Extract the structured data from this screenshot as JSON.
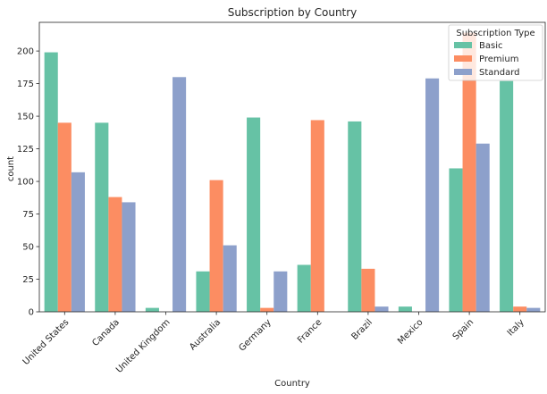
{
  "chart_data": {
    "type": "bar",
    "title": "Subscription by Country",
    "xlabel": "Country",
    "ylabel": "count",
    "ylim": [
      0,
      222
    ],
    "yticks": [
      0,
      25,
      50,
      75,
      100,
      125,
      150,
      175,
      200
    ],
    "grid": false,
    "legend": {
      "title": "Subscription Type",
      "position": "top-right"
    },
    "categories": [
      "United States",
      "Canada",
      "United Kingdom",
      "Australia",
      "Germany",
      "France",
      "Brazil",
      "Mexico",
      "Spain",
      "Italy"
    ],
    "series": [
      {
        "name": "Basic",
        "color": "#66c2a5",
        "values": [
          199,
          145,
          3,
          31,
          149,
          36,
          146,
          4,
          110,
          177
        ]
      },
      {
        "name": "Premium",
        "color": "#fc8d62",
        "values": [
          145,
          88,
          0,
          101,
          3,
          147,
          33,
          0,
          214,
          4
        ]
      },
      {
        "name": "Standard",
        "color": "#8da0cb",
        "values": [
          107,
          84,
          180,
          51,
          31,
          0,
          4,
          179,
          129,
          3
        ]
      }
    ]
  }
}
